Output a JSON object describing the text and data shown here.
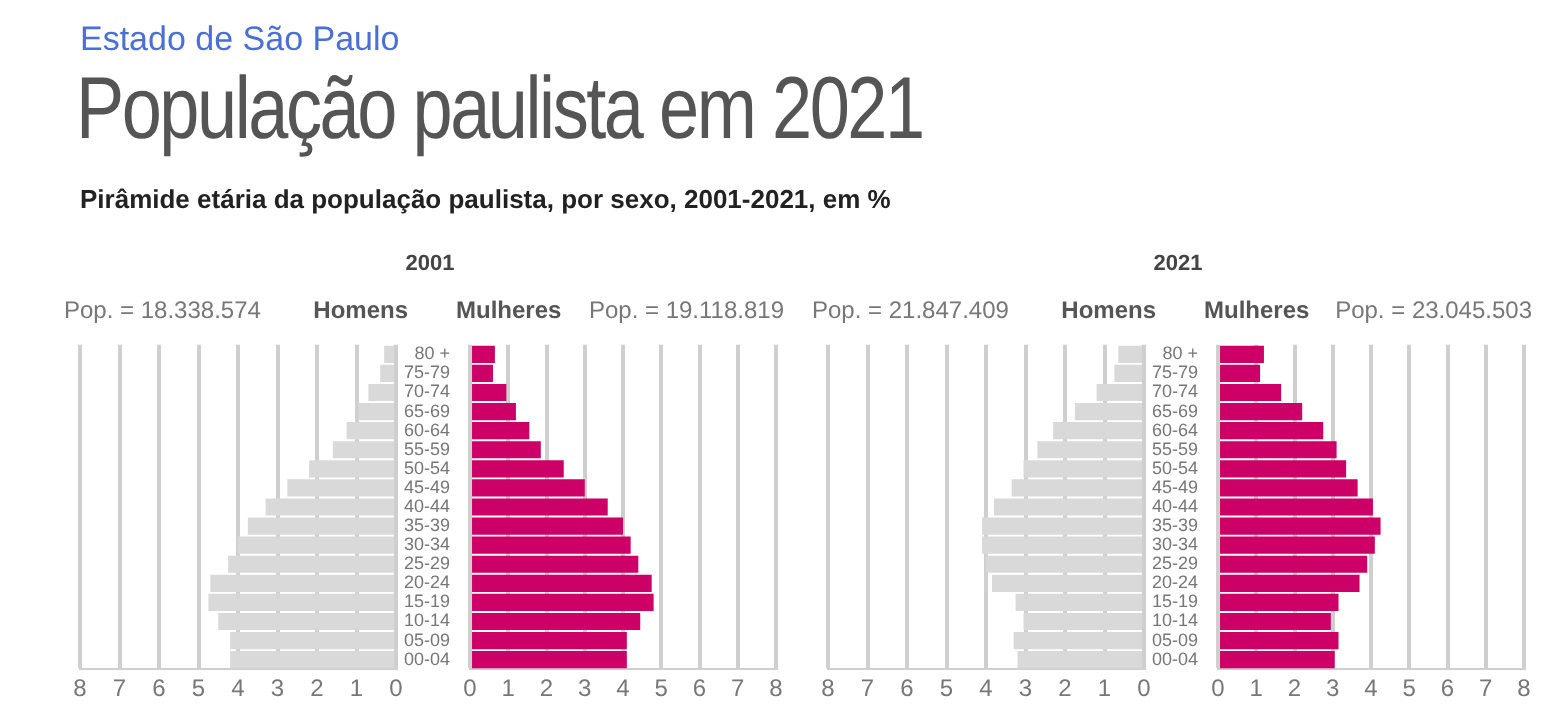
{
  "chart_data": [
    {
      "type": "other",
      "title": "População paulista em 2021",
      "subtitle": "Pirâmide etária da população paulista, por sexo, 2001-2021, em %",
      "annotations": [
        "Estado de São Paulo"
      ]
    },
    {
      "type": "bar",
      "orientation": "horizontal",
      "title": "2001",
      "subtitle": "Homens",
      "annotations": [
        "Pop. = 18.338.574"
      ],
      "categories": [
        null,
        null,
        null,
        null,
        null,
        null,
        null,
        null,
        null,
        null,
        null,
        null,
        null,
        null,
        null,
        null,
        null
      ],
      "color": "#d9d9d9",
      "values": [
        0.3,
        0.4,
        0.7,
        0.95,
        1.25,
        1.6,
        2.2,
        2.75,
        3.3,
        3.75,
        4.0,
        4.25,
        4.7,
        4.75,
        4.5,
        4.2,
        4.2
      ],
      "xlim": [
        8,
        0
      ],
      "xticks": [
        8,
        7,
        6,
        5,
        4,
        3,
        2,
        1,
        0
      ],
      "grid": "x"
    },
    {
      "type": "bar",
      "orientation": "horizontal",
      "subtitle": "Mulheres",
      "annotations": [
        "Pop. = 19.118.819"
      ],
      "categories": [
        "80 +",
        "75-79",
        "70-74",
        "65-69",
        "60-64",
        "55-59",
        "50-54",
        "45-49",
        "40-44",
        "35-39",
        "30-34",
        "25-29",
        "20-24",
        "15-19",
        "10-14",
        "05-09",
        "00-04"
      ],
      "color": "#cc0066",
      "values": [
        0.65,
        0.6,
        0.95,
        1.2,
        1.55,
        1.85,
        2.45,
        3.0,
        3.6,
        4.0,
        4.2,
        4.4,
        4.75,
        4.8,
        4.45,
        4.1,
        4.1
      ],
      "xlim": [
        0,
        8
      ],
      "xticks": [
        0,
        1,
        2,
        3,
        4,
        5,
        6,
        7,
        8
      ],
      "grid": "x"
    },
    {
      "type": "bar",
      "orientation": "horizontal",
      "title": "2021",
      "subtitle": "Homens",
      "annotations": [
        "Pop. = 21.847.409"
      ],
      "categories": [
        null,
        null,
        null,
        null,
        null,
        null,
        null,
        null,
        null,
        null,
        null,
        null,
        null,
        null,
        null,
        null,
        null
      ],
      "color": "#d9d9d9",
      "values": [
        0.65,
        0.75,
        1.2,
        1.75,
        2.3,
        2.7,
        3.05,
        3.35,
        3.8,
        4.1,
        4.1,
        4.0,
        3.85,
        3.25,
        3.05,
        3.3,
        3.2
      ],
      "xlim": [
        8,
        0
      ],
      "xticks": [
        8,
        7,
        6,
        5,
        4,
        3,
        2,
        1,
        0
      ],
      "grid": "x"
    },
    {
      "type": "bar",
      "orientation": "horizontal",
      "subtitle": "Mulheres",
      "annotations": [
        "Pop. = 23.045.503"
      ],
      "categories": [
        "80 +",
        "75-79",
        "70-74",
        "65-69",
        "60-64",
        "55-59",
        "50-54",
        "45-49",
        "40-44",
        "35-39",
        "30-34",
        "25-29",
        "20-24",
        "15-19",
        "10-14",
        "05-09",
        "00-04"
      ],
      "color": "#cc0066",
      "values": [
        1.2,
        1.1,
        1.65,
        2.2,
        2.75,
        3.1,
        3.35,
        3.65,
        4.05,
        4.25,
        4.1,
        3.9,
        3.7,
        3.15,
        2.95,
        3.15,
        3.05
      ],
      "xlim": [
        0,
        8
      ],
      "xticks": [
        0,
        1,
        2,
        3,
        4,
        5,
        6,
        7,
        8
      ],
      "grid": "x"
    }
  ]
}
